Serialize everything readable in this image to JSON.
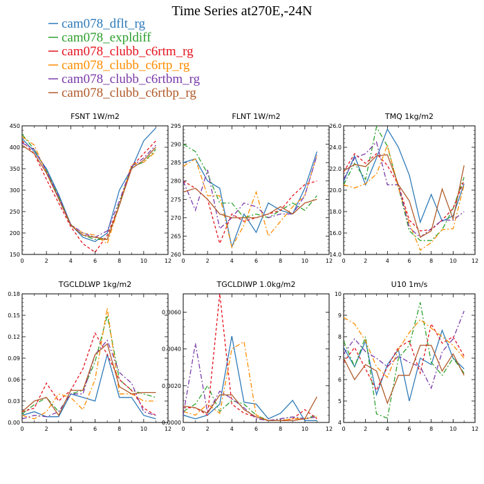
{
  "figure": {
    "title": "Time Series at270E,-24N"
  },
  "legend": [
    {
      "name": "cam078_dflt_rg",
      "color": "#2e7ab8",
      "dash": "solid"
    },
    {
      "name": "cam078_expldiff",
      "color": "#2ca02c",
      "dash": "dashdot"
    },
    {
      "name": "cam078_clubb_c6rtm_rg",
      "color": "#e4131e",
      "dash": "dash"
    },
    {
      "name": "cam078_clubb_c6rtp_rg",
      "color": "#ff8c00",
      "dash": "dashdot"
    },
    {
      "name": "cam078_clubb_c6rtbm_rg",
      "color": "#7a3aa8",
      "dash": "dashdot"
    },
    {
      "name": "cam078_clubb_c6rtbp_rg",
      "color": "#b05a2a",
      "dash": "solid"
    }
  ],
  "chart_data": [
    {
      "type": "line",
      "title": "FSNT 1W/m2",
      "xlim": [
        0,
        12
      ],
      "ylim": [
        150,
        450
      ],
      "xticks": [
        "0",
        "2",
        "4",
        "6",
        "8",
        "10",
        "12"
      ],
      "yticks": [
        "150",
        "200",
        "250",
        "300",
        "350",
        "400",
        "450"
      ],
      "ytick_values": [
        150,
        200,
        250,
        300,
        350,
        400,
        450
      ],
      "x": [
        0,
        1,
        2,
        3,
        4,
        5,
        6,
        7,
        8,
        9,
        10,
        11
      ],
      "series": [
        {
          "values": [
            420,
            390,
            350,
            290,
            220,
            190,
            180,
            200,
            300,
            350,
            415,
            445
          ]
        },
        {
          "values": [
            430,
            395,
            345,
            285,
            220,
            195,
            185,
            185,
            270,
            355,
            365,
            395
          ]
        },
        {
          "values": [
            415,
            385,
            325,
            270,
            215,
            175,
            155,
            195,
            265,
            355,
            385,
            415
          ]
        },
        {
          "values": [
            425,
            405,
            340,
            280,
            218,
            200,
            195,
            175,
            265,
            360,
            365,
            390
          ]
        },
        {
          "values": [
            410,
            395,
            345,
            285,
            220,
            200,
            190,
            205,
            275,
            355,
            375,
            405
          ]
        },
        {
          "values": [
            405,
            385,
            340,
            280,
            218,
            195,
            190,
            185,
            265,
            350,
            370,
            400
          ]
        }
      ]
    },
    {
      "type": "line",
      "title": "FLNT 1W/m2",
      "xlim": [
        0,
        12
      ],
      "ylim": [
        260,
        295
      ],
      "xticks": [
        "0",
        "2",
        "4",
        "6",
        "8",
        "10",
        "12"
      ],
      "yticks": [
        "260",
        "265",
        "270",
        "275",
        "280",
        "285",
        "290",
        "295"
      ],
      "ytick_values": [
        260,
        265,
        270,
        275,
        280,
        285,
        290,
        295
      ],
      "x": [
        0,
        1,
        2,
        3,
        4,
        5,
        6,
        7,
        8,
        9,
        10,
        11
      ],
      "series": [
        {
          "values": [
            285,
            286,
            280,
            278,
            262,
            271,
            266,
            274,
            272,
            271,
            278,
            288
          ]
        },
        {
          "values": [
            290,
            288,
            282,
            274,
            274,
            270,
            271,
            270,
            272,
            274,
            272,
            276
          ]
        },
        {
          "values": [
            280,
            278,
            275,
            263,
            271,
            269,
            270,
            271,
            272,
            276,
            279,
            280
          ]
        },
        {
          "values": [
            284,
            286,
            276,
            276,
            262,
            268,
            277,
            265,
            269,
            273,
            276,
            287
          ]
        },
        {
          "values": [
            280,
            272,
            283,
            267,
            270,
            274,
            273,
            270,
            271,
            271,
            276,
            287
          ]
        },
        {
          "values": [
            277,
            278,
            275,
            271,
            270,
            270,
            270,
            271,
            273,
            271,
            274,
            275
          ]
        }
      ]
    },
    {
      "type": "line",
      "title": "TMQ 1kg/m2",
      "xlim": [
        0,
        12
      ],
      "ylim": [
        14,
        26
      ],
      "xticks": [
        "0",
        "2",
        "4",
        "6",
        "8",
        "10",
        "12"
      ],
      "yticks": [
        "14.0",
        "16.0",
        "18.0",
        "20.0",
        "22.0",
        "24.0",
        "26.0"
      ],
      "ytick_values": [
        14,
        16,
        18,
        20,
        22,
        24,
        26
      ],
      "x": [
        0,
        1,
        2,
        3,
        4,
        5,
        6,
        7,
        8,
        9,
        10,
        11
      ],
      "series": [
        {
          "values": [
            20.8,
            23.2,
            20.5,
            23.0,
            25.7,
            24.0,
            21.4,
            17.0,
            19.6,
            17.1,
            17.6,
            20.6
          ]
        },
        {
          "values": [
            20.5,
            22.5,
            21.0,
            25.9,
            24.1,
            20.3,
            16.2,
            15.3,
            15.3,
            16.3,
            18.3,
            21.2
          ]
        },
        {
          "values": [
            21.7,
            23.4,
            22.5,
            23.4,
            22.3,
            20.5,
            17.2,
            16.2,
            16.3,
            17.2,
            18.3,
            20.9
          ]
        },
        {
          "values": [
            20.5,
            20.2,
            20.6,
            21.5,
            24.2,
            20.2,
            16.9,
            14.4,
            15.1,
            16.3,
            16.4,
            20.5
          ]
        },
        {
          "values": [
            21.0,
            23.0,
            23.4,
            24.5,
            20.5,
            20.5,
            16.5,
            15.6,
            16.4,
            17.2,
            17.2,
            18.0
          ]
        },
        {
          "values": [
            21.8,
            22.4,
            22.2,
            23.2,
            23.3,
            20.5,
            19.0,
            15.6,
            16.2,
            20.1,
            17.3,
            22.3
          ]
        }
      ]
    },
    {
      "type": "line",
      "title": "TGCLDLWP 1kg/m2",
      "xlim": [
        0,
        12
      ],
      "ylim": [
        0,
        0.18
      ],
      "xticks": [
        "0",
        "2",
        "4",
        "6",
        "8",
        "10",
        "12"
      ],
      "yticks": [
        "0.00",
        "0.03",
        "0.06",
        "0.09",
        "0.12",
        "0.15",
        "0.18"
      ],
      "ytick_values": [
        0,
        0.03,
        0.06,
        0.09,
        0.12,
        0.15,
        0.18
      ],
      "x": [
        0,
        1,
        2,
        3,
        4,
        5,
        6,
        7,
        8,
        9,
        10,
        11
      ],
      "series": [
        {
          "values": [
            0.01,
            0.015,
            0.008,
            0.008,
            0.04,
            0.035,
            0.03,
            0.095,
            0.035,
            0.035,
            0.01,
            0.005
          ]
        },
        {
          "values": [
            0.012,
            0.025,
            0.035,
            0.015,
            0.04,
            0.045,
            0.085,
            0.15,
            0.06,
            0.045,
            0.04,
            0.035
          ]
        },
        {
          "values": [
            0.015,
            0.02,
            0.055,
            0.03,
            0.045,
            0.075,
            0.125,
            0.095,
            0.06,
            0.045,
            0.02,
            0.01
          ]
        },
        {
          "values": [
            0.01,
            0.005,
            0.015,
            0.04,
            0.035,
            0.018,
            0.06,
            0.16,
            0.04,
            0.04,
            0.03,
            0.03
          ]
        },
        {
          "values": [
            0.005,
            0.01,
            0.008,
            0.015,
            0.04,
            0.04,
            0.095,
            0.115,
            0.07,
            0.055,
            0.015,
            0.01
          ]
        },
        {
          "values": [
            0.015,
            0.03,
            0.035,
            0.01,
            0.045,
            0.045,
            0.095,
            0.11,
            0.05,
            0.04,
            0.042,
            0.042
          ]
        }
      ]
    },
    {
      "type": "line",
      "title": "TGCLDIWP 1.0kg/m2",
      "xlim": [
        0,
        12
      ],
      "ylim": [
        0,
        0.007
      ],
      "xticks": [
        "0",
        "2",
        "4",
        "6",
        "8",
        "10",
        "12"
      ],
      "yticks": [
        "0.0000",
        "0.0020",
        "0.0040",
        "0.0060"
      ],
      "ytick_values": [
        0,
        0.002,
        0.004,
        0.006
      ],
      "x": [
        0,
        1,
        2,
        3,
        4,
        5,
        6,
        7,
        8,
        9,
        10,
        11
      ],
      "series": [
        {
          "values": [
            0.0004,
            0.0002,
            0.0004,
            0.001,
            0.0047,
            0.0011,
            0.001,
            0.0002,
            0.0005,
            0.0012,
            0.0001,
            0.0001
          ]
        },
        {
          "values": [
            0.0006,
            0.001,
            0.002,
            0.0006,
            0.0012,
            0.001,
            0.0004,
            0.0001,
            0.0002,
            0.0003,
            0.0002,
            0.0004
          ]
        },
        {
          "values": [
            0.0008,
            0.0008,
            0.0004,
            0.007,
            0.001,
            0.0005,
            0.0003,
            0.0001,
            0.0001,
            0.0002,
            0.0007,
            0.0002
          ]
        },
        {
          "values": [
            0.0006,
            0.0004,
            0.001,
            0.0005,
            0.004,
            0.0044,
            0.0004,
            0.0001,
            0.0001,
            0.0002,
            0.0002,
            0.0003
          ]
        },
        {
          "values": [
            0.0004,
            0.0043,
            0.0005,
            0.0017,
            0.0013,
            0.0008,
            0.0002,
            0.0001,
            0.0002,
            0.0003,
            0.0002,
            0.0003
          ]
        },
        {
          "values": [
            0.0009,
            0.0008,
            0.0005,
            0.0015,
            0.0015,
            0.0007,
            0.0003,
            0.0001,
            0.0001,
            0.0001,
            0.0002,
            0.0014
          ]
        }
      ]
    },
    {
      "type": "line",
      "title": "U10 1m/s",
      "xlim": [
        0,
        12
      ],
      "ylim": [
        4,
        10
      ],
      "xticks": [
        "0",
        "2",
        "4",
        "6",
        "8",
        "10",
        "12"
      ],
      "yticks": [
        "4",
        "5",
        "6",
        "7",
        "8",
        "9",
        "10"
      ],
      "ytick_values": [
        4,
        5,
        6,
        7,
        8,
        9,
        10
      ],
      "x": [
        0,
        1,
        2,
        3,
        4,
        5,
        6,
        7,
        8,
        9,
        10,
        11
      ],
      "series": [
        {
          "values": [
            7.5,
            6.6,
            7.8,
            5.3,
            6.7,
            7.4,
            5.0,
            7.0,
            6.7,
            8.3,
            7.0,
            6.5
          ]
        },
        {
          "values": [
            7.8,
            6.6,
            8.0,
            4.4,
            4.2,
            7.0,
            7.6,
            9.6,
            6.8,
            6.2,
            7.0,
            6.3
          ]
        },
        {
          "values": [
            6.8,
            7.5,
            6.5,
            5.5,
            6.6,
            7.5,
            7.8,
            6.3,
            8.6,
            7.7,
            8.0,
            7.1
          ]
        },
        {
          "values": [
            8.9,
            8.6,
            7.8,
            6.6,
            6.1,
            7.4,
            8.2,
            8.8,
            8.4,
            8.0,
            7.6,
            7.0
          ]
        },
        {
          "values": [
            7.2,
            7.9,
            7.3,
            7.0,
            6.6,
            7.1,
            6.8,
            6.6,
            5.6,
            7.3,
            7.9,
            9.2
          ]
        },
        {
          "values": [
            7.0,
            6.0,
            6.7,
            6.4,
            4.9,
            6.2,
            6.2,
            7.6,
            7.6,
            6.4,
            7.2,
            6.2
          ]
        }
      ]
    }
  ]
}
